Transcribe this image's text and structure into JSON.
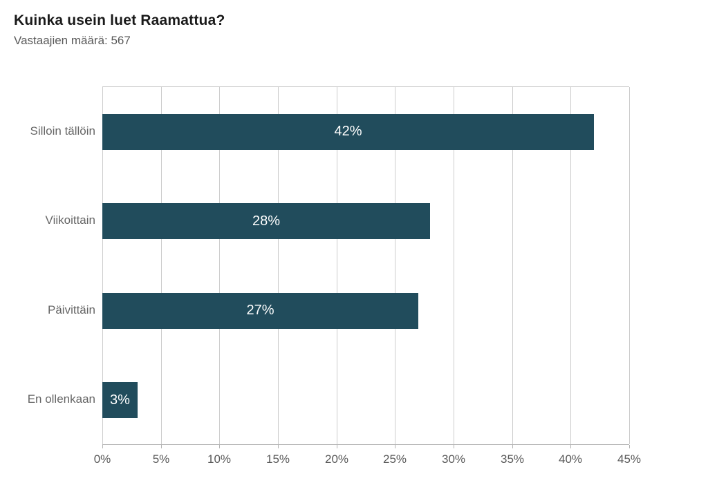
{
  "header": {
    "title": "Kuinka usein luet Raamattua?",
    "subtitle": "Vastaajien määrä: 567"
  },
  "chart_data": {
    "type": "bar",
    "orientation": "horizontal",
    "title": "Kuinka usein luet Raamattua?",
    "subtitle": "Vastaajien määrä: 567",
    "categories": [
      "Silloin tällöin",
      "Viikoittain",
      "Päivittäin",
      "En ollenkaan"
    ],
    "values": [
      42,
      28,
      27,
      3
    ],
    "value_labels": [
      "42%",
      "28%",
      "27%",
      "3%"
    ],
    "xlabel": "",
    "ylabel": "",
    "xlim": [
      0,
      45
    ],
    "xtick_step": 5,
    "xticks": [
      "0%",
      "5%",
      "10%",
      "15%",
      "20%",
      "25%",
      "30%",
      "35%",
      "40%",
      "45%"
    ],
    "grid": true,
    "legend": false,
    "colors": {
      "bar": "#214C5C",
      "bar_label_text": "#FFFFFF",
      "gridline": "#CCCCCC",
      "axis_line": "#B3B3B3",
      "tick_text": "#595959",
      "category_text": "#666666",
      "title_text": "#1A1A1A",
      "background": "#FFFFFF"
    }
  }
}
